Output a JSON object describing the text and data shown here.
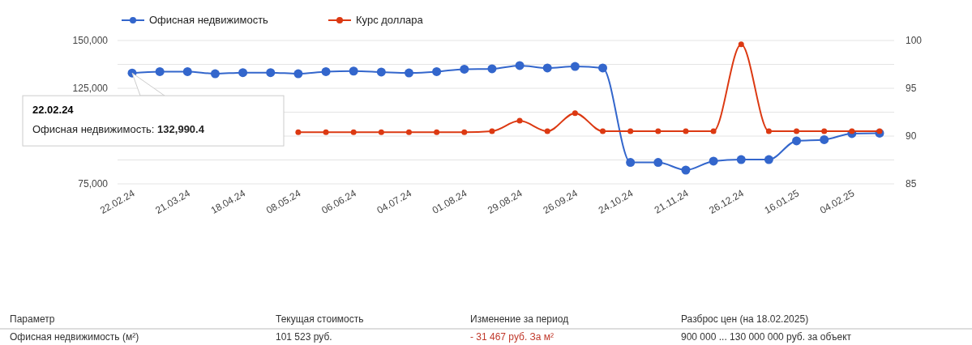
{
  "chart_data": {
    "type": "line",
    "categories": [
      "22.02.24",
      null,
      "21.03.24",
      null,
      "18.04.24",
      null,
      "08.05.24",
      null,
      "06.06.24",
      null,
      "04.07.24",
      null,
      "01.08.24",
      null,
      "29.08.24",
      null,
      "26.09.24",
      null,
      "24.10.24",
      null,
      "21.11.24",
      null,
      "26.12.24",
      null,
      "16.01.25",
      null,
      "04.02.25",
      null
    ],
    "series": [
      {
        "name": "Офисная недвижимость",
        "color": "#3366cc",
        "values": [
          132990.4,
          133700,
          133700,
          132600,
          133200,
          133200,
          132600,
          133700,
          134000,
          133500,
          133000,
          133700,
          135000,
          135200,
          136900,
          135600,
          136400,
          135600,
          86200,
          86200,
          82200,
          86900,
          87700,
          87700,
          97500,
          98100,
          101300,
          101500
        ]
      },
      {
        "name": "Курс доллара",
        "color": "#dc3912",
        "axis": "y2",
        "values": [
          null,
          null,
          null,
          null,
          null,
          null,
          90.4,
          90.4,
          90.4,
          90.4,
          90.4,
          90.4,
          90.4,
          90.5,
          91.6,
          90.5,
          92.4,
          90.5,
          90.5,
          90.5,
          90.5,
          90.5,
          99.6,
          90.5,
          90.5,
          90.5,
          90.5,
          90.5
        ]
      }
    ],
    "ylim": [
      75000,
      150000
    ],
    "yticks": [
      {
        "value": 75000,
        "label": "75,000"
      },
      {
        "value": 87500,
        "label": null
      },
      {
        "value": 100000,
        "label": null
      },
      {
        "value": 112500,
        "label": null
      },
      {
        "value": 125000,
        "label": "125,000"
      },
      {
        "value": 137500,
        "label": null
      },
      {
        "value": 150000,
        "label": "150,000"
      }
    ],
    "y2lim": [
      85,
      100
    ],
    "y2ticks": [
      85,
      90,
      95,
      100
    ],
    "grid": "y",
    "legend": "top",
    "marker": "circle",
    "annotations": [
      {
        "text": "22.02.24\nОфисная недвижимость: 132,990.4",
        "x": "22.02.24",
        "y": 132990.4
      },
      "Параметр",
      "Текущая стоимость",
      "Изменение за период",
      "Разброс цен (на 18.02.2025)",
      "Офисная недвижимость (м²)",
      "101 523 руб.",
      "- 31 467 руб. За м²",
      "900 000 ... 130 000 000 руб. за объект"
    ]
  }
}
